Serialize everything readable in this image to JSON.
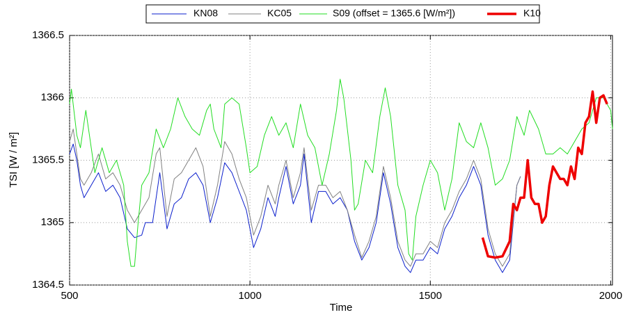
{
  "chart_data": {
    "type": "line",
    "xlabel": "Time",
    "ylabel": "TSI [W / m²]",
    "xlim": [
      500,
      2005
    ],
    "ylim": [
      1364.5,
      1366.5
    ],
    "xticks": [
      500,
      1000,
      1500,
      2000
    ],
    "yticks": [
      1364.5,
      1365,
      1365.5,
      1366,
      1366.5
    ],
    "grid": true,
    "legend": "top",
    "series": [
      {
        "name": "KN08",
        "color": "#0a1ecc",
        "width": 1,
        "x": [
          500,
          510,
          520,
          530,
          540,
          560,
          580,
          600,
          620,
          640,
          660,
          680,
          700,
          710,
          730,
          750,
          770,
          790,
          810,
          830,
          850,
          870,
          890,
          910,
          930,
          950,
          970,
          990,
          1010,
          1030,
          1050,
          1070,
          1080,
          1100,
          1120,
          1140,
          1150,
          1170,
          1190,
          1210,
          1230,
          1250,
          1270,
          1290,
          1310,
          1330,
          1350,
          1370,
          1390,
          1410,
          1430,
          1445,
          1460,
          1480,
          1500,
          1520,
          1540,
          1560,
          1580,
          1600,
          1620,
          1640,
          1660,
          1680,
          1700,
          1720,
          1740,
          1750
        ],
        "values": [
          1365.55,
          1365.63,
          1365.5,
          1365.3,
          1365.2,
          1365.3,
          1365.4,
          1365.25,
          1365.3,
          1365.2,
          1364.95,
          1364.88,
          1364.9,
          1365.0,
          1365.0,
          1365.4,
          1364.95,
          1365.15,
          1365.2,
          1365.35,
          1365.4,
          1365.3,
          1365.0,
          1365.2,
          1365.48,
          1365.4,
          1365.25,
          1365.1,
          1364.8,
          1364.95,
          1365.2,
          1365.05,
          1365.2,
          1365.45,
          1365.15,
          1365.3,
          1365.55,
          1365.0,
          1365.25,
          1365.25,
          1365.15,
          1365.2,
          1365.1,
          1364.85,
          1364.7,
          1364.8,
          1365.0,
          1365.4,
          1365.15,
          1364.8,
          1364.65,
          1364.6,
          1364.7,
          1364.7,
          1364.8,
          1364.75,
          1364.95,
          1365.05,
          1365.2,
          1365.3,
          1365.45,
          1365.3,
          1364.9,
          1364.7,
          1364.6,
          1364.7,
          1365.3,
          1365.37
        ]
      },
      {
        "name": "KC05",
        "color": "#808080",
        "width": 1,
        "x": [
          500,
          510,
          520,
          530,
          540,
          560,
          580,
          600,
          620,
          640,
          660,
          680,
          700,
          720,
          740,
          750,
          770,
          790,
          810,
          830,
          850,
          870,
          890,
          910,
          930,
          950,
          970,
          990,
          1010,
          1030,
          1050,
          1070,
          1080,
          1100,
          1120,
          1140,
          1150,
          1170,
          1190,
          1210,
          1230,
          1250,
          1270,
          1290,
          1310,
          1330,
          1350,
          1370,
          1390,
          1410,
          1430,
          1445,
          1460,
          1480,
          1500,
          1520,
          1540,
          1560,
          1580,
          1600,
          1620,
          1640,
          1660,
          1680,
          1700,
          1720,
          1740,
          1750
        ],
        "values": [
          1365.65,
          1365.75,
          1365.55,
          1365.35,
          1365.3,
          1365.4,
          1365.55,
          1365.35,
          1365.4,
          1365.3,
          1365.1,
          1365.0,
          1365.1,
          1365.2,
          1365.55,
          1365.6,
          1365.05,
          1365.35,
          1365.4,
          1365.5,
          1365.6,
          1365.45,
          1365.05,
          1365.3,
          1365.65,
          1365.55,
          1365.35,
          1365.2,
          1364.9,
          1365.05,
          1365.3,
          1365.15,
          1365.3,
          1365.5,
          1365.2,
          1365.4,
          1365.6,
          1365.1,
          1365.3,
          1365.3,
          1365.2,
          1365.25,
          1365.1,
          1364.9,
          1364.72,
          1364.85,
          1365.05,
          1365.45,
          1365.2,
          1364.85,
          1364.7,
          1364.65,
          1364.75,
          1364.75,
          1364.85,
          1364.8,
          1365.0,
          1365.1,
          1365.25,
          1365.35,
          1365.5,
          1365.35,
          1364.95,
          1364.75,
          1364.65,
          1364.75,
          1365.3,
          1365.37
        ]
      },
      {
        "name": "S09 (offset = 1365.6 [W/m²])",
        "color": "#22dd22",
        "width": 1,
        "x": [
          500,
          505,
          520,
          530,
          545,
          560,
          570,
          590,
          610,
          630,
          650,
          660,
          670,
          680,
          690,
          700,
          720,
          740,
          760,
          780,
          800,
          820,
          840,
          860,
          880,
          890,
          900,
          920,
          930,
          950,
          970,
          990,
          1000,
          1020,
          1040,
          1060,
          1080,
          1100,
          1120,
          1140,
          1160,
          1180,
          1200,
          1220,
          1240,
          1250,
          1260,
          1280,
          1290,
          1300,
          1320,
          1340,
          1360,
          1375,
          1390,
          1410,
          1430,
          1440,
          1450,
          1460,
          1480,
          1500,
          1520,
          1540,
          1560,
          1580,
          1600,
          1620,
          1640,
          1660,
          1680,
          1700,
          1720,
          1740,
          1760,
          1775,
          1800,
          1820,
          1840,
          1860,
          1880,
          1900,
          1920,
          1940,
          1960,
          1980,
          2000,
          2005
        ],
        "values": [
          1365.95,
          1366.07,
          1365.7,
          1365.6,
          1365.9,
          1365.6,
          1365.4,
          1365.6,
          1365.4,
          1365.5,
          1365.3,
          1364.85,
          1364.65,
          1364.65,
          1365.0,
          1365.3,
          1365.4,
          1365.75,
          1365.6,
          1365.75,
          1366.0,
          1365.85,
          1365.75,
          1365.7,
          1365.9,
          1365.95,
          1365.75,
          1365.6,
          1365.95,
          1366.0,
          1365.95,
          1365.6,
          1365.4,
          1365.45,
          1365.7,
          1365.85,
          1365.7,
          1365.8,
          1365.6,
          1365.95,
          1365.7,
          1365.6,
          1365.3,
          1365.55,
          1365.9,
          1366.15,
          1366.0,
          1365.5,
          1365.1,
          1365.15,
          1365.5,
          1365.4,
          1365.85,
          1366.08,
          1365.85,
          1365.3,
          1365.1,
          1364.75,
          1364.7,
          1365.05,
          1365.3,
          1365.5,
          1365.4,
          1365.1,
          1365.35,
          1365.8,
          1365.65,
          1365.6,
          1365.8,
          1365.6,
          1365.3,
          1365.35,
          1365.5,
          1365.85,
          1365.7,
          1365.9,
          1365.75,
          1365.55,
          1365.55,
          1365.6,
          1365.55,
          1365.65,
          1365.75,
          1365.8,
          1366.0,
          1366.0,
          1365.9,
          1365.75
        ]
      },
      {
        "name": "K10",
        "color": "#ee0000",
        "width": 3.5,
        "x": [
          1645,
          1660,
          1680,
          1700,
          1720,
          1730,
          1740,
          1750,
          1760,
          1770,
          1780,
          1790,
          1800,
          1810,
          1820,
          1830,
          1840,
          1850,
          1860,
          1870,
          1880,
          1890,
          1900,
          1910,
          1920,
          1930,
          1940,
          1950,
          1960,
          1970,
          1980,
          1990
        ],
        "values": [
          1364.88,
          1364.73,
          1364.72,
          1364.73,
          1364.85,
          1365.15,
          1365.1,
          1365.2,
          1365.2,
          1365.5,
          1365.2,
          1365.15,
          1365.15,
          1365.0,
          1365.05,
          1365.3,
          1365.45,
          1365.4,
          1365.35,
          1365.35,
          1365.3,
          1365.45,
          1365.35,
          1365.6,
          1365.55,
          1365.8,
          1365.85,
          1366.05,
          1365.8,
          1366.0,
          1366.02,
          1365.95
        ]
      }
    ]
  }
}
